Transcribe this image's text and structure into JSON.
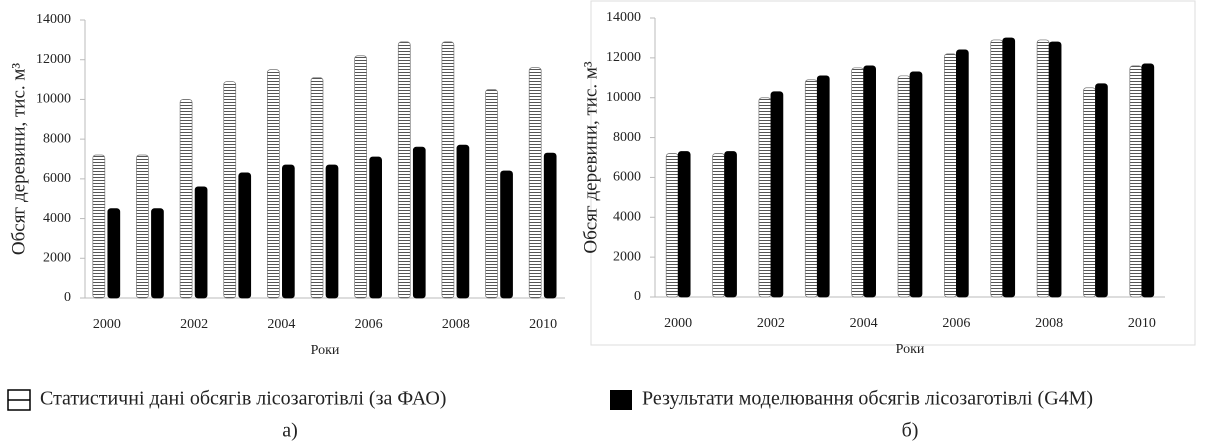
{
  "chart_data": [
    {
      "type": "bar",
      "ylabel": "Обсяг деревини, тис. м³",
      "xlabel": "Роки",
      "caption": "а)",
      "categories": [
        "2000",
        null,
        "2002",
        null,
        "2004",
        null,
        "2006",
        null,
        "2008",
        null,
        "2010"
      ],
      "series": [
        {
          "name": "Статистичні дані обсягів лісозаготівлі (за ФАО)",
          "color": "#ffffff",
          "pattern": "horizontal",
          "values": [
            7200,
            7200,
            10000,
            10900,
            11500,
            11100,
            12200,
            12900,
            12900,
            10500,
            11600
          ]
        },
        {
          "name": "Результати моделювання обсягів лісозаготівлі (G4M)",
          "color": "#000000",
          "values": [
            4500,
            4500,
            5600,
            6300,
            6700,
            6700,
            7100,
            7600,
            7700,
            6400,
            7300
          ]
        }
      ],
      "ylim": [
        0,
        14000
      ],
      "yticks": [
        0,
        2000,
        4000,
        6000,
        8000,
        10000,
        12000,
        14000
      ]
    },
    {
      "type": "bar",
      "ylabel": "Обсяг деревини, тис. м³",
      "xlabel": "Роки",
      "caption": "б)",
      "categories": [
        "2000",
        null,
        "2002",
        null,
        "2004",
        null,
        "2006",
        null,
        "2008",
        null,
        "2010"
      ],
      "series": [
        {
          "color": "#ffffff",
          "pattern": "horizontal",
          "values": [
            7200,
            7200,
            10000,
            10900,
            11500,
            11100,
            12200,
            12900,
            12900,
            10500,
            11600
          ]
        },
        {
          "color": "#000000",
          "values": [
            7300,
            7300,
            10300,
            11100,
            11600,
            11300,
            12400,
            13000,
            12800,
            10700,
            11700
          ]
        }
      ],
      "ylim": [
        0,
        14000
      ],
      "yticks": [
        0,
        2000,
        4000,
        6000,
        8000,
        10000,
        12000,
        14000
      ]
    }
  ]
}
